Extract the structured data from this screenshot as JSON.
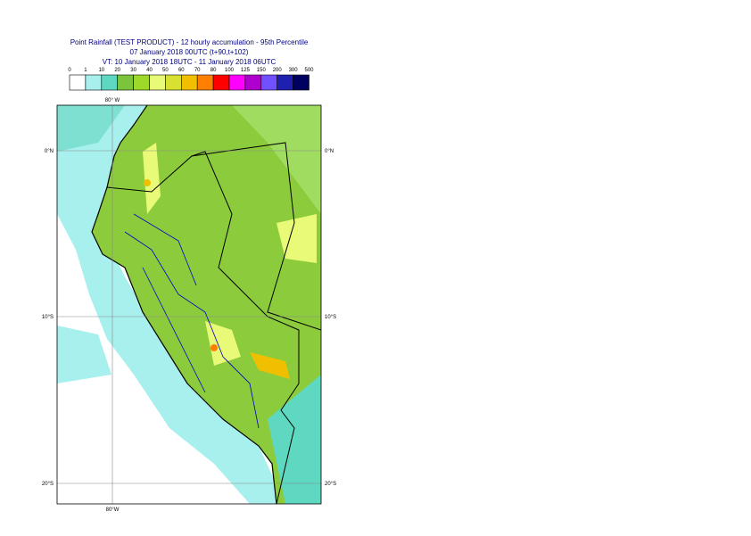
{
  "header": {
    "title": "Point Rainfall (TEST PRODUCT) - 12 hourly accumulation - 95th Percentile",
    "base_time": "07 January 2018 00UTC (t+90,t+102)",
    "valid_time": "VT: 10 January 2018 18UTC - 11 January 2018 06UTC"
  },
  "legend": {
    "labels": [
      "0",
      "1",
      "10",
      "20",
      "30",
      "40",
      "50",
      "60",
      "70",
      "80",
      "100",
      "125",
      "150",
      "200",
      "300",
      "500"
    ],
    "colors": [
      "#ffffff",
      "#a8f0ee",
      "#5ed8c0",
      "#7cc43c",
      "#9ed828",
      "#e8fa78",
      "#d8e030",
      "#f0c000",
      "#ff8000",
      "#ff0000",
      "#ff00ff",
      "#b000d0",
      "#7050ff",
      "#2020b0",
      "#000060"
    ]
  },
  "map": {
    "lon_label_top": "80° W",
    "lon_label_bottom": "80°W",
    "lat_labels": [
      "0°N",
      "10°S",
      "20°S"
    ]
  }
}
